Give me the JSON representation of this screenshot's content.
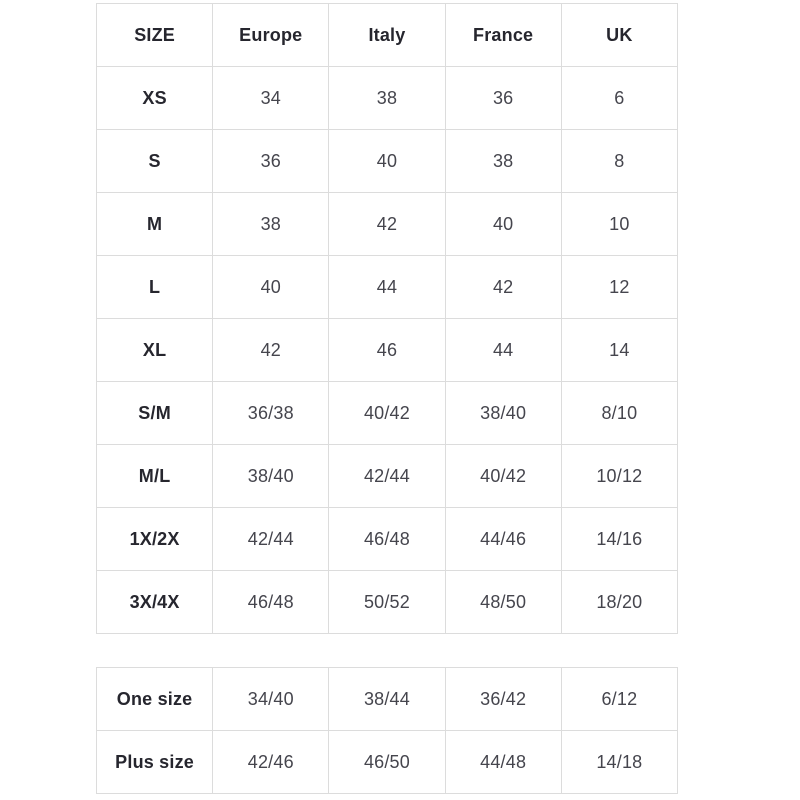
{
  "colors": {
    "background": "#ffffff",
    "border": "#dcdcdc",
    "heading_text": "#26262e",
    "cell_text": "#45454d"
  },
  "chart_data": [
    {
      "type": "table",
      "name": "size-conversion-table",
      "columns": [
        "SIZE",
        "Europe",
        "Italy",
        "France",
        "UK"
      ],
      "rows": [
        [
          "XS",
          "34",
          "38",
          "36",
          "6"
        ],
        [
          "S",
          "36",
          "40",
          "38",
          "8"
        ],
        [
          "M",
          "38",
          "42",
          "40",
          "10"
        ],
        [
          "L",
          "40",
          "44",
          "42",
          "12"
        ],
        [
          "XL",
          "42",
          "46",
          "44",
          "14"
        ],
        [
          "S/M",
          "36/38",
          "40/42",
          "38/40",
          "8/10"
        ],
        [
          "M/L",
          "38/40",
          "42/44",
          "40/42",
          "10/12"
        ],
        [
          "1X/2X",
          "42/44",
          "46/48",
          "44/46",
          "14/16"
        ],
        [
          "3X/4X",
          "46/48",
          "50/52",
          "48/50",
          "18/20"
        ]
      ]
    },
    {
      "type": "table",
      "name": "special-sizes-table",
      "columns": null,
      "rows": [
        [
          "One size",
          "34/40",
          "38/44",
          "36/42",
          "6/12"
        ],
        [
          "Plus size",
          "42/46",
          "46/50",
          "44/48",
          "14/18"
        ]
      ]
    }
  ]
}
